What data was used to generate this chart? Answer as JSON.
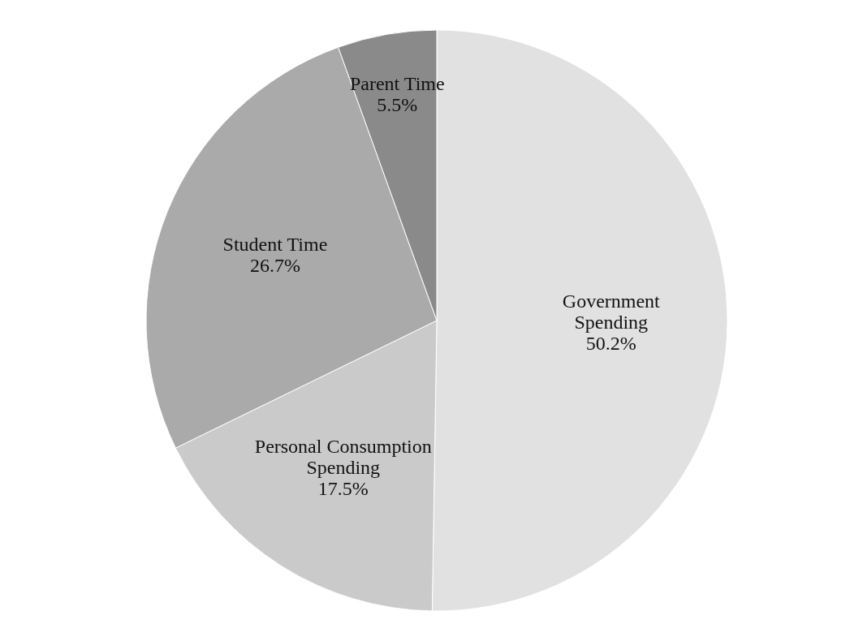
{
  "chart_data": {
    "type": "pie",
    "categories": [
      "Government Spending",
      "Personal Consumption Spending",
      "Student Time",
      "Parent Time"
    ],
    "values": [
      50.2,
      17.5,
      26.7,
      5.5
    ],
    "value_labels": [
      "50.2%",
      "17.5%",
      "26.7%",
      "5.5%"
    ],
    "colors": [
      "#e1e1e1",
      "#cacaca",
      "#aaaaaa",
      "#8a8a8a"
    ],
    "legend": false
  }
}
